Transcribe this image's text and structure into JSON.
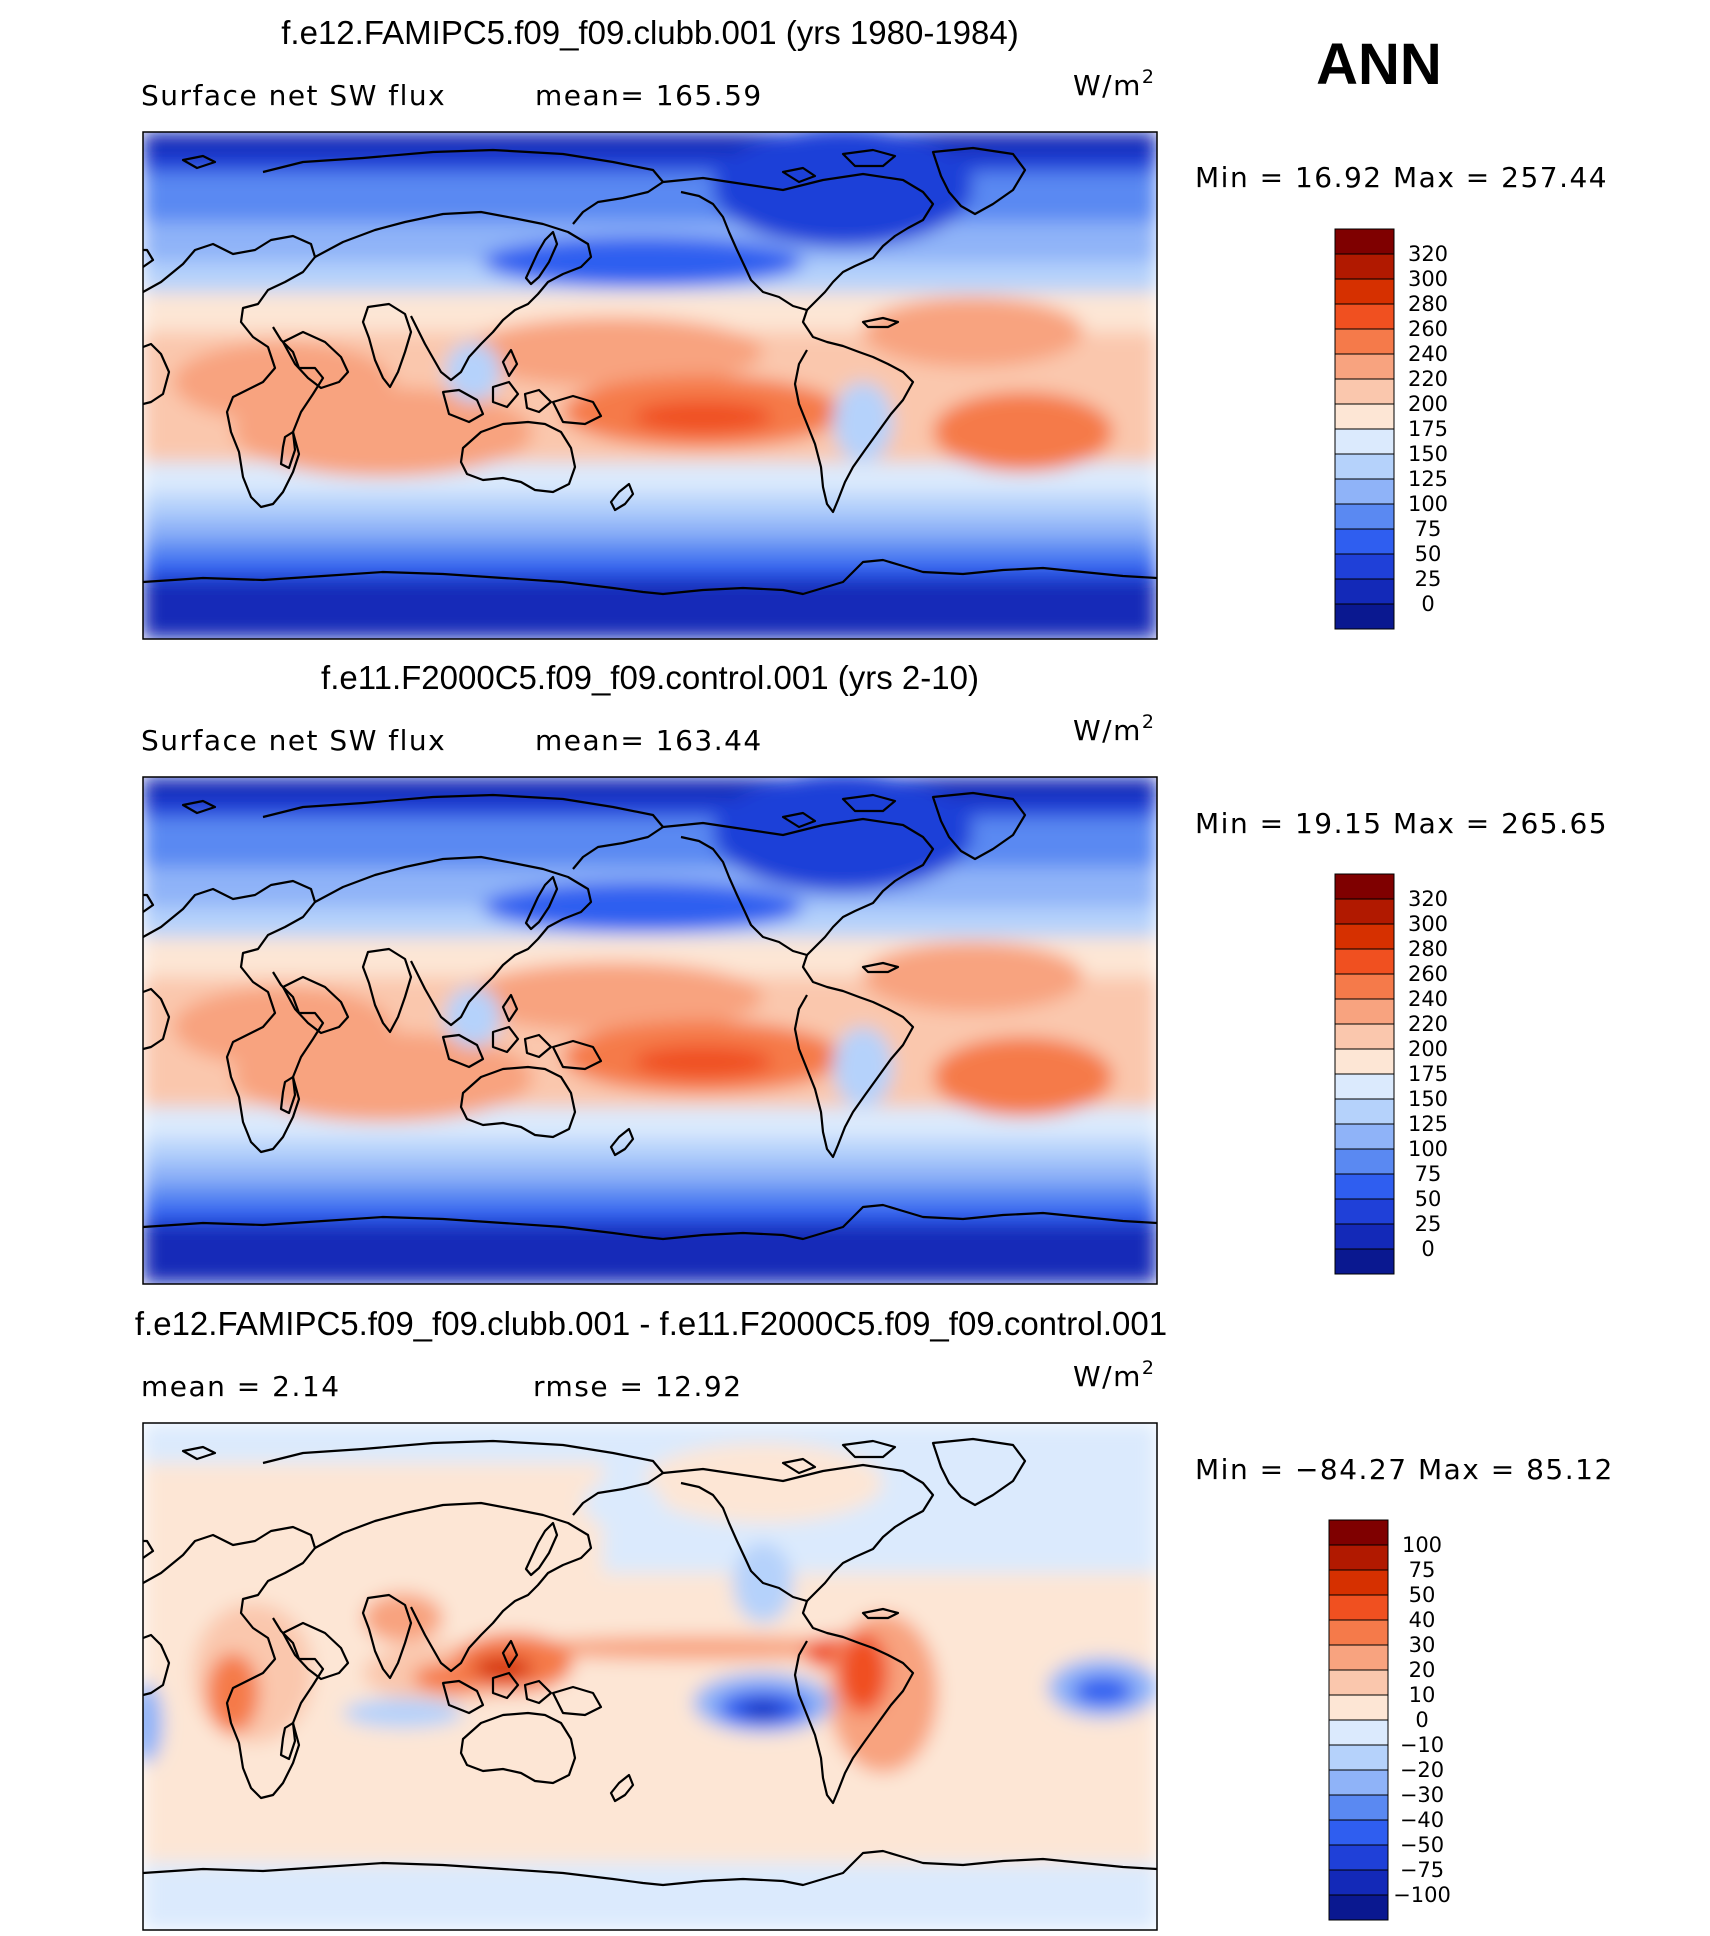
{
  "page_title": "ANN",
  "chart_data": [
    {
      "type": "heatmap",
      "title": "f.e12.FAMIPC5.f09_f09.clubb.001 (yrs 1980-1984)",
      "variable": "Surface net SW flux",
      "stat_left": "mean= 165.59",
      "units": "W/m",
      "units_sup": "2",
      "minmax": "Min =   16.92 Max = 257.44",
      "mean": 165.59,
      "min": 16.92,
      "max": 257.44,
      "colorbar": {
        "levels": [
          "320",
          "300",
          "280",
          "260",
          "240",
          "220",
          "200",
          "175",
          "150",
          "125",
          "100",
          "75",
          "50",
          "25",
          "0"
        ],
        "colors": [
          "#7f0000",
          "#b11900",
          "#d63000",
          "#f05020",
          "#f57a4a",
          "#f8a37f",
          "#fac7ad",
          "#fde6d5",
          "#dbeafd",
          "#b5d2fb",
          "#8fb3f8",
          "#5a89f2",
          "#2f5ef0",
          "#1f40d8",
          "#1329b8",
          "#0a1890"
        ]
      }
    },
    {
      "type": "heatmap",
      "title": "f.e11.F2000C5.f09_f09.control.001 (yrs 2-10)",
      "variable": "Surface net SW flux",
      "stat_left": "mean= 163.44",
      "units": "W/m",
      "units_sup": "2",
      "minmax": "Min =   19.15 Max = 265.65",
      "mean": 163.44,
      "min": 19.15,
      "max": 265.65,
      "colorbar": {
        "levels": [
          "320",
          "300",
          "280",
          "260",
          "240",
          "220",
          "200",
          "175",
          "150",
          "125",
          "100",
          "75",
          "50",
          "25",
          "0"
        ],
        "colors": [
          "#7f0000",
          "#b11900",
          "#d63000",
          "#f05020",
          "#f57a4a",
          "#f8a37f",
          "#fac7ad",
          "#fde6d5",
          "#dbeafd",
          "#b5d2fb",
          "#8fb3f8",
          "#5a89f2",
          "#2f5ef0",
          "#1f40d8",
          "#1329b8",
          "#0a1890"
        ]
      }
    },
    {
      "type": "heatmap",
      "title": "f.e12.FAMIPC5.f09_f09.clubb.001 - f.e11.F2000C5.f09_f09.control.001",
      "stat_left": "mean =    2.14",
      "stat_right": "rmse =   12.92",
      "units": "W/m",
      "units_sup": "2",
      "minmax": "Min = −84.27 Max =   85.12",
      "mean": 2.14,
      "rmse": 12.92,
      "min": -84.27,
      "max": 85.12,
      "colorbar": {
        "levels": [
          "100",
          "75",
          "50",
          "40",
          "30",
          "20",
          "10",
          "0",
          "−10",
          "−20",
          "−30",
          "−40",
          "−50",
          "−75",
          "−100"
        ],
        "colors": [
          "#7f0000",
          "#b11900",
          "#d63000",
          "#f05020",
          "#f57a4a",
          "#f8a37f",
          "#fac7ad",
          "#fde6d5",
          "#dbeafd",
          "#b5d2fb",
          "#8fb3f8",
          "#5a89f2",
          "#2f5ef0",
          "#1f40d8",
          "#1329b8",
          "#0a1890"
        ]
      }
    }
  ]
}
